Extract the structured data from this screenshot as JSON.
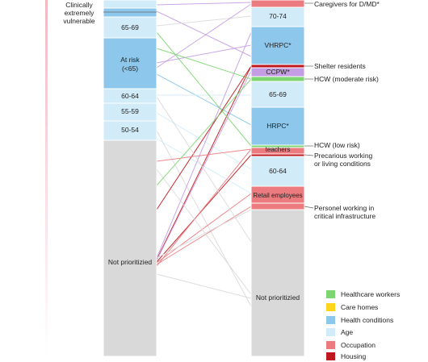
{
  "left_column": {
    "side_label": "Clinically\nextremely\nvulnerable",
    "segments": [
      {
        "label": "",
        "category": "age"
      },
      {
        "label": "",
        "category": "health"
      },
      {
        "label": "65-69",
        "category": "age"
      },
      {
        "label": "At risk\n(<65)",
        "category": "health"
      },
      {
        "label": "60-64",
        "category": "age"
      },
      {
        "label": "55-59",
        "category": "age"
      },
      {
        "label": "50-54",
        "category": "age"
      },
      {
        "label": "Not prioritizied",
        "category": "none"
      }
    ]
  },
  "right_column": {
    "segments": [
      {
        "label": "",
        "category": "occupation"
      },
      {
        "label": "70-74",
        "category": "age"
      },
      {
        "label": "VHRPC*",
        "category": "health"
      },
      {
        "label": "",
        "category": "housing"
      },
      {
        "label": "CCPW*",
        "category": "purple"
      },
      {
        "label": "",
        "category": "healthcare"
      },
      {
        "label": "65-69",
        "category": "age"
      },
      {
        "label": "HRPC*",
        "category": "health"
      },
      {
        "label": "",
        "category": "healthcare"
      },
      {
        "label": "teachers",
        "category": "occupation"
      },
      {
        "label": "",
        "category": "housing"
      },
      {
        "label": "60-64",
        "category": "age"
      },
      {
        "label": "Retail employees",
        "category": "occupation"
      },
      {
        "label": "",
        "category": "occupation"
      },
      {
        "label": "Not prioritizied",
        "category": "none"
      }
    ],
    "side_labels": [
      "Caregivers for D/MD*",
      "Shelter residents",
      "HCW (moderate risk)",
      "HCW (low risk)",
      "Precarious working\nor living conditions",
      "Personel working in\ncritical infrastructure"
    ]
  },
  "legend": [
    {
      "label": "Healthcare workers",
      "color": "#7ed672"
    },
    {
      "label": "Care homes",
      "color": "#ffd51c"
    },
    {
      "label": "Health conditions",
      "color": "#8dc8ec"
    },
    {
      "label": "Age",
      "color": "#d1ecf8"
    },
    {
      "label": "Occupation",
      "color": "#ec7b7f"
    },
    {
      "label": "Housing",
      "color": "#c0161d"
    }
  ],
  "colors": {
    "age": "#d1ecf8",
    "health": "#8dc8ec",
    "occupation": "#ec7b7f",
    "housing": "#c0161d",
    "healthcare": "#7ed672",
    "purple": "#c49de4",
    "none": "#d9d9d9",
    "gradient_bar": "#f2b8c4"
  }
}
